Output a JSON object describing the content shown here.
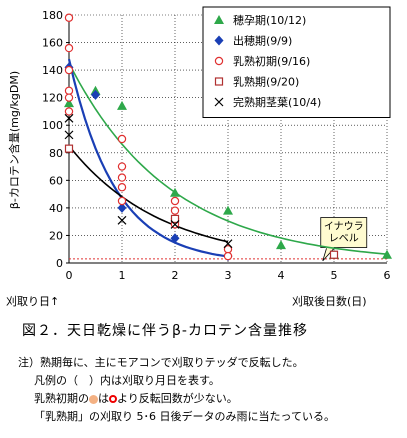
{
  "chart_data": {
    "type": "scatter",
    "ylabel": "β-カロテン含量(mg/kgDM)",
    "xlabel_left": "刈取り日↑",
    "xlabel_right": "刈取後日数(日)",
    "xlim": [
      0,
      6
    ],
    "ylim": [
      0,
      180
    ],
    "xticks": [
      "0",
      "1",
      "2",
      "3",
      "4",
      "5",
      "6"
    ],
    "yticks": [
      "0",
      "20",
      "40",
      "60",
      "80",
      "100",
      "120",
      "140",
      "160",
      "180"
    ],
    "threshold": {
      "label": "イナウラ\nレベル",
      "value": 3
    },
    "series": [
      {
        "name": "穂孕期(10/12)",
        "marker": "triangle",
        "color": "#2ea84a",
        "x": [
          0,
          0.5,
          1,
          2,
          3,
          4,
          5,
          6
        ],
        "y": [
          116,
          125,
          114,
          51,
          38,
          13,
          6,
          6
        ],
        "curve": {
          "a": 145,
          "k": 0.52
        }
      },
      {
        "name": "出穂期(9/9)",
        "marker": "diamond",
        "color": "#1a3fb5",
        "x": [
          0,
          0.5,
          1,
          2,
          3
        ],
        "y": [
          142,
          122,
          40,
          18,
          5
        ],
        "curve": {
          "a": 148,
          "k": 1.15
        }
      },
      {
        "name": "乳熟初期(9/16)",
        "marker": "circle",
        "color": "#e03030",
        "x": [
          0,
          0,
          0,
          0,
          0,
          0,
          1,
          1,
          1,
          1,
          1,
          2,
          2,
          2,
          2,
          3,
          3
        ],
        "y": [
          178,
          156,
          140,
          125,
          120,
          110,
          90,
          70,
          62,
          55,
          45,
          45,
          38,
          32,
          28,
          10,
          5
        ]
      },
      {
        "name": "乳熟期(9/20)",
        "marker": "square",
        "color": "#b03030",
        "x": [
          0,
          2,
          5
        ],
        "y": [
          83,
          32,
          6
        ]
      },
      {
        "name": "完熟期茎葉(10/4)",
        "marker": "cross",
        "color": "#000000",
        "x": [
          0,
          0,
          1,
          2,
          3
        ],
        "y": [
          105,
          93,
          31,
          28,
          14
        ],
        "curve": {
          "a": 85,
          "k": 0.57
        }
      }
    ]
  },
  "caption": "図２．天日乾燥に伴うβ-カロテン含量推移",
  "notes": {
    "line1": "注）熟期毎に、主にモアコンで刈取りテッダで反転した。",
    "line2": "凡例の（　）内は刈取り月日を表す。",
    "line3_a": "乳熟初期の",
    "line3_b": "は",
    "line3_c": "より反転回数が少ない。",
    "line4": "「乳熟期」の刈取り 5･6 日後データのみ雨に当たっている。"
  }
}
